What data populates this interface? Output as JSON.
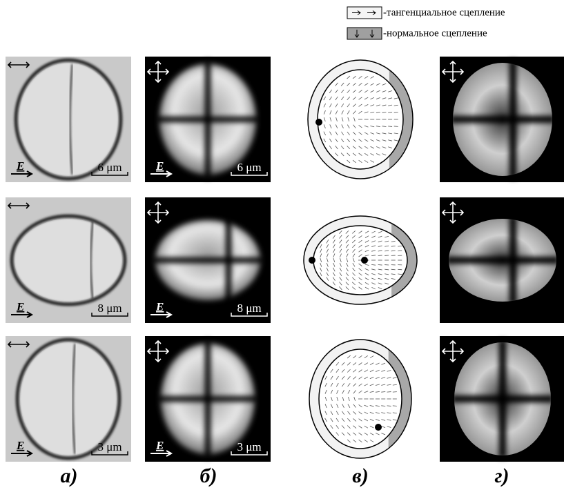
{
  "legend": [
    {
      "label": "-тангенциальное сцепление"
    },
    {
      "label": "-нормальное сцепление"
    }
  ],
  "rows": [
    {
      "scale": "6 μm"
    },
    {
      "scale": "8 μm"
    },
    {
      "scale": "3 μm"
    }
  ],
  "field_label": "E",
  "columns": [
    "а)",
    "б)",
    "в)",
    "г)"
  ]
}
